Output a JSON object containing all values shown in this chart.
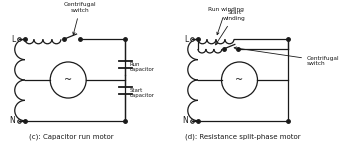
{
  "background_color": "#ffffff",
  "line_color": "#1a1a1a",
  "text_color": "#1a1a1a",
  "fig_width": 3.49,
  "fig_height": 1.44,
  "dpi": 100,
  "label_c": "(c): Capacitor run motor",
  "label_d": "(d): Resistance split-phase motor",
  "annot_centrifugal_c": "Centrifugal\nswitch",
  "annot_run_cap": "Run\ncapacitor",
  "annot_start_cap": "Start\ncapacitor",
  "annot_run_winding": "Run winding",
  "annot_start_winding": "Start\nwinding",
  "annot_centrifugal_d": "Centrifugal\nswitch",
  "L_label": "L",
  "N_label": "N",
  "font_size_label": 5.0,
  "font_size_annot": 4.2,
  "font_size_LN": 5.5,
  "font_size_tilde": 7
}
